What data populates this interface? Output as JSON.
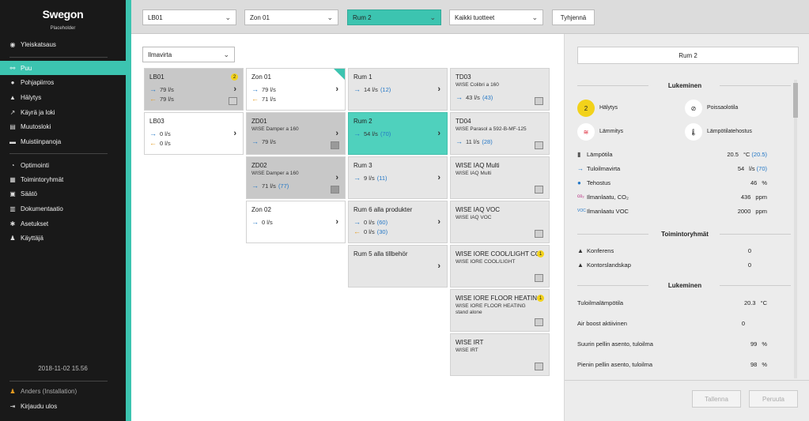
{
  "sidebar": {
    "logo": "Swegon",
    "logo_sub": "Placeholder",
    "items": [
      {
        "label": "Yleiskatsaus",
        "icon": "eye-icon"
      },
      {
        "label": "Puu",
        "icon": "tree-icon"
      },
      {
        "label": "Pohjapiirros",
        "icon": "location-pin-icon"
      },
      {
        "label": "Hälytys",
        "icon": "bell-icon"
      },
      {
        "label": "Käyrä ja loki",
        "icon": "chart-icon"
      },
      {
        "label": "Muutosloki",
        "icon": "document-icon"
      },
      {
        "label": "Muistiinpanoja",
        "icon": "chat-icon"
      },
      {
        "label": "Optimointi",
        "icon": "gauge-icon"
      },
      {
        "label": "Toimintoryhmät",
        "icon": "group-icon"
      },
      {
        "label": "Säätö",
        "icon": "sliders-icon"
      },
      {
        "label": "Dokumentaatio",
        "icon": "book-icon"
      },
      {
        "label": "Asetukset",
        "icon": "gear-icon"
      },
      {
        "label": "Käyttäjä",
        "icon": "users-icon"
      }
    ],
    "datetime": "2018-11-02 15.56",
    "user": "Anders (Installation)",
    "logout": "Kirjaudu ulos"
  },
  "topbar": {
    "filters": [
      "LB01",
      "Zon 01",
      "Rum 2",
      "Kaikki tuotteet"
    ],
    "clear_button": "Tyhjennä"
  },
  "main": {
    "airflow_select": "Ilmavirta",
    "col1": [
      {
        "title": "LB01",
        "badge": "2",
        "v1": "79 l/s",
        "v2": "79 l/s"
      },
      {
        "title": "LB03",
        "v1": "0 l/s",
        "v2": "0 l/s"
      }
    ],
    "col2": [
      {
        "title": "Zon 01",
        "v1": "79 l/s",
        "v2": "71 l/s"
      },
      {
        "title": "ZD01",
        "sub": "WISE Damper a 160",
        "v1": "79 l/s"
      },
      {
        "title": "ZD02",
        "sub": "WISE Damper a 160",
        "v1": "71 l/s",
        "v1p": "(77)"
      },
      {
        "title": "Zon 02",
        "v1": "0 l/s"
      }
    ],
    "col3": [
      {
        "title": "Rum 1",
        "v1": "14 l/s",
        "v1p": "(12)"
      },
      {
        "title": "Rum 2",
        "v1": "54 l/s",
        "v1p": "(70)"
      },
      {
        "title": "Rum 3",
        "v1": "9 l/s",
        "v1p": "(11)"
      },
      {
        "title": "Rum 6 alla produkter",
        "v1": "0 l/s",
        "v1p": "(60)",
        "v2": "0 l/s",
        "v2p": "(30)"
      },
      {
        "title": "Rum 5 alla tillbehör"
      }
    ],
    "col4": [
      {
        "title": "TD03",
        "sub": "WISE Colibri a 160",
        "v1": "43 l/s",
        "v1p": "(43)"
      },
      {
        "title": "TD04",
        "sub": "WISE Parasol a 592-B-MF-125",
        "v1": "11 l/s",
        "v1p": "(28)"
      },
      {
        "title": "WISE IAQ Multi",
        "sub": "WISE IAQ Multi"
      },
      {
        "title": "WISE IAQ VOC",
        "sub": "WISE IAQ VOC"
      },
      {
        "title": "WISE IORE COOL/LIGHT CO...",
        "sub": "WISE IORE COOL/LIGHT",
        "badge": "1"
      },
      {
        "title": "WISE IORE FLOOR HEATING s",
        "sub": "WISE IORE FLOOR HEATING stand alone",
        "badge": "1"
      },
      {
        "title": "WISE IRT",
        "sub": "WISE IRT"
      }
    ]
  },
  "panel": {
    "title": "Rum 2",
    "readings_header": "Lukeminen",
    "status": [
      {
        "label": "Hälytys",
        "value": "2",
        "icon": "alarm-count"
      },
      {
        "label": "Poissaolotila",
        "icon": "absence-icon"
      },
      {
        "label": "Lämmitys",
        "icon": "heating-icon"
      },
      {
        "label": "Lämpötilatehostus",
        "icon": "thermometer-icon"
      }
    ],
    "readings": [
      {
        "label": "Lämpötila",
        "value": "20.5",
        "unit": "°C",
        "paren": "(20.5)",
        "icon": "thermometer-icon"
      },
      {
        "label": "Tuloilmavirta",
        "value": "54",
        "unit": "l/s",
        "paren": "(70)",
        "icon": "arrow-icon"
      },
      {
        "label": "Tehostus",
        "value": "46",
        "unit": "%",
        "icon": "drop-icon"
      },
      {
        "label": "Ilmanlaatu, CO₂",
        "value": "436",
        "unit": "ppm",
        "icon": "co2-icon"
      },
      {
        "label": "Ilmanlaatu VOC",
        "value": "2000",
        "unit": "ppm",
        "icon": "voc-icon"
      }
    ],
    "groups_header": "Toimintoryhmät",
    "groups": [
      {
        "label": "Konferens",
        "value": "0"
      },
      {
        "label": "Kontorslandskap",
        "value": "0"
      }
    ],
    "readings2_header": "Lukeminen",
    "readings2": [
      {
        "label": "Tuloilmalämpötila",
        "value": "20.3",
        "unit": "°C"
      },
      {
        "label": "Air boost aktiivinen",
        "value": "0",
        "unit": ""
      },
      {
        "label": "Suurin pellin asento, tuloilma",
        "value": "99",
        "unit": "%"
      },
      {
        "label": "Pienin pellin asento, tuloilma",
        "value": "98",
        "unit": "%"
      }
    ],
    "save_button": "Tallenna",
    "cancel_button": "Peruuta"
  },
  "colors": {
    "accent": "#3cc4b0",
    "sidebar": "#191919",
    "badge": "#f2d21b",
    "link": "#2377c6"
  }
}
